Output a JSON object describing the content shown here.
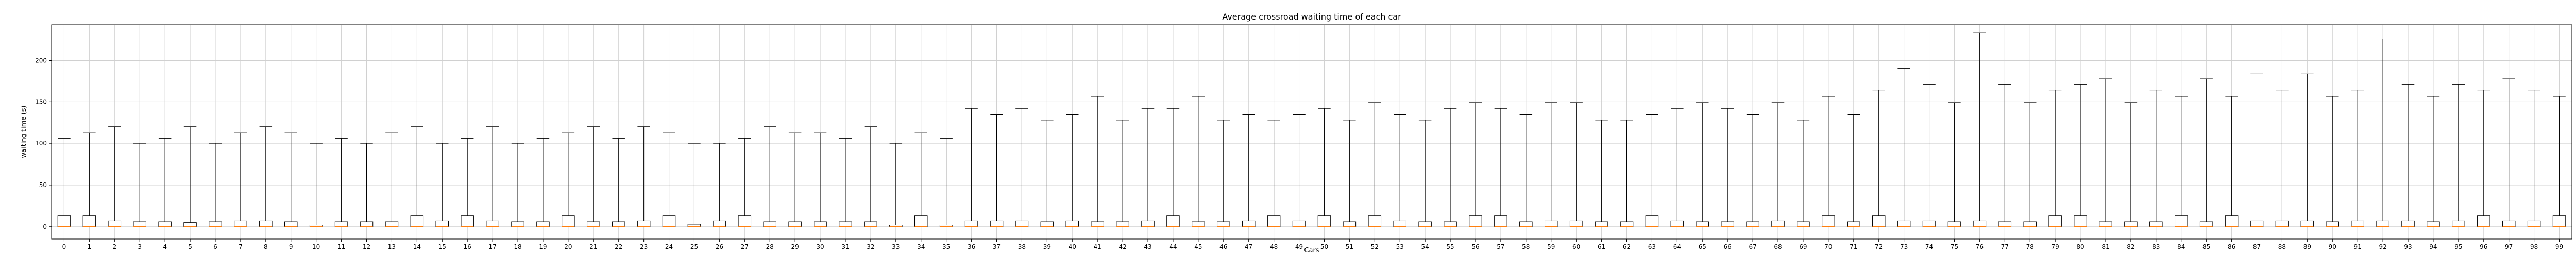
{
  "chart_data": {
    "type": "box",
    "title": "Average crossroad waiting time of each car",
    "xlabel": "Cars",
    "ylabel": "waiting time (s)",
    "ylim": [
      -15,
      243
    ],
    "yticks": [
      0,
      50,
      100,
      150,
      200
    ],
    "grid": true,
    "categories": [
      "0",
      "1",
      "2",
      "3",
      "4",
      "5",
      "6",
      "7",
      "8",
      "9",
      "10",
      "11",
      "12",
      "13",
      "14",
      "15",
      "16",
      "17",
      "18",
      "19",
      "20",
      "21",
      "22",
      "23",
      "24",
      "25",
      "26",
      "27",
      "28",
      "29",
      "30",
      "31",
      "32",
      "33",
      "34",
      "35",
      "36",
      "37",
      "38",
      "39",
      "40",
      "41",
      "42",
      "43",
      "44",
      "45",
      "46",
      "47",
      "48",
      "49",
      "50",
      "51",
      "52",
      "53",
      "54",
      "55",
      "56",
      "57",
      "58",
      "59",
      "60",
      "61",
      "62",
      "63",
      "64",
      "65",
      "66",
      "67",
      "68",
      "69",
      "70",
      "71",
      "72",
      "73",
      "74",
      "75",
      "76",
      "77",
      "78",
      "79",
      "80",
      "81",
      "82",
      "83",
      "84",
      "85",
      "86",
      "87",
      "88",
      "89",
      "90",
      "91",
      "92",
      "93",
      "94",
      "95",
      "96",
      "97",
      "98",
      "99"
    ],
    "box_color": "#000000",
    "median_color": "#ff7f0e",
    "whisker_max": [
      106,
      113,
      120,
      100,
      106,
      120,
      100,
      113,
      120,
      113,
      100,
      106,
      100,
      113,
      120,
      100,
      106,
      120,
      100,
      106,
      113,
      120,
      106,
      120,
      113,
      100,
      100,
      106,
      120,
      113,
      113,
      106,
      120,
      100,
      113,
      106,
      142,
      135,
      142,
      128,
      135,
      157,
      128,
      142,
      142,
      157,
      128,
      135,
      128,
      135,
      142,
      128,
      149,
      135,
      128,
      142,
      149,
      142,
      135,
      149,
      149,
      128,
      128,
      135,
      142,
      149,
      142,
      135,
      149,
      128,
      157,
      135,
      164,
      190,
      171,
      149,
      233,
      171,
      149,
      164,
      171,
      178,
      149,
      164,
      157,
      178,
      157,
      184,
      164,
      184,
      157,
      164,
      226,
      171,
      157,
      171,
      164,
      178,
      164,
      157
    ],
    "q3": [
      13,
      13,
      7,
      6,
      6,
      5,
      6,
      7,
      7,
      6,
      2,
      6,
      6,
      6,
      13,
      7,
      13,
      7,
      6,
      6,
      13,
      6,
      6,
      7,
      13,
      3,
      7,
      13,
      6,
      6,
      6,
      6,
      6,
      2,
      13,
      2,
      7,
      7,
      7,
      6,
      7,
      6,
      6,
      7,
      13,
      6,
      6,
      7,
      13,
      7,
      13,
      6,
      13,
      7,
      6,
      6,
      13,
      13,
      6,
      7,
      7,
      6,
      6,
      13,
      7,
      6,
      6,
      6,
      7,
      6,
      13,
      6,
      13,
      7,
      7,
      6,
      7,
      6,
      6,
      13,
      13,
      6,
      6,
      6,
      13,
      6,
      13,
      7,
      7,
      7,
      6,
      7,
      7,
      7,
      6,
      7,
      13,
      7,
      7,
      13
    ],
    "q1": [
      0,
      0,
      0,
      0,
      0,
      0,
      0,
      0,
      0,
      0,
      0,
      0,
      0,
      0,
      0,
      0,
      0,
      0,
      0,
      0,
      0,
      0,
      0,
      0,
      0,
      0,
      0,
      0,
      0,
      0,
      0,
      0,
      0,
      0,
      0,
      0,
      0,
      0,
      0,
      0,
      0,
      0,
      0,
      0,
      0,
      0,
      0,
      0,
      0,
      0,
      0,
      0,
      0,
      0,
      0,
      0,
      0,
      0,
      0,
      0,
      0,
      0,
      0,
      0,
      0,
      0,
      0,
      0,
      0,
      0,
      0,
      0,
      0,
      0,
      0,
      0,
      0,
      0,
      0,
      0,
      0,
      0,
      0,
      0,
      0,
      0,
      0,
      0,
      0,
      0,
      0,
      0,
      0,
      0,
      0,
      0,
      0,
      0,
      0,
      0
    ],
    "median": [
      0,
      0,
      0,
      0,
      0,
      0,
      0,
      0,
      0,
      0,
      0,
      0,
      0,
      0,
      0,
      0,
      0,
      0,
      0,
      0,
      0,
      0,
      0,
      0,
      0,
      0,
      0,
      0,
      0,
      0,
      0,
      0,
      0,
      0,
      0,
      0,
      0,
      0,
      0,
      0,
      0,
      0,
      0,
      0,
      0,
      0,
      0,
      0,
      0,
      0,
      0,
      0,
      0,
      0,
      0,
      0,
      0,
      0,
      0,
      0,
      0,
      0,
      0,
      0,
      0,
      0,
      0,
      0,
      0,
      0,
      0,
      0,
      0,
      0,
      0,
      0,
      0,
      0,
      0,
      0,
      0,
      0,
      0,
      0,
      0,
      0,
      0,
      0,
      0,
      0,
      0,
      0,
      0,
      0,
      0,
      0,
      0,
      0,
      0,
      0
    ],
    "whisker_min": [
      0,
      0,
      0,
      0,
      0,
      0,
      0,
      0,
      0,
      0,
      0,
      0,
      0,
      0,
      0,
      0,
      0,
      0,
      0,
      0,
      0,
      0,
      0,
      0,
      0,
      0,
      0,
      0,
      0,
      0,
      0,
      0,
      0,
      0,
      0,
      0,
      0,
      0,
      0,
      0,
      0,
      0,
      0,
      0,
      0,
      0,
      0,
      0,
      0,
      0,
      0,
      0,
      0,
      0,
      0,
      0,
      0,
      0,
      0,
      0,
      0,
      0,
      0,
      0,
      0,
      0,
      0,
      0,
      0,
      0,
      0,
      0,
      0,
      0,
      0,
      0,
      0,
      0,
      0,
      0,
      0,
      0,
      0,
      0,
      0,
      0,
      0,
      0,
      0,
      0,
      0,
      0,
      0,
      0,
      0,
      0,
      0,
      0,
      0,
      0
    ]
  }
}
